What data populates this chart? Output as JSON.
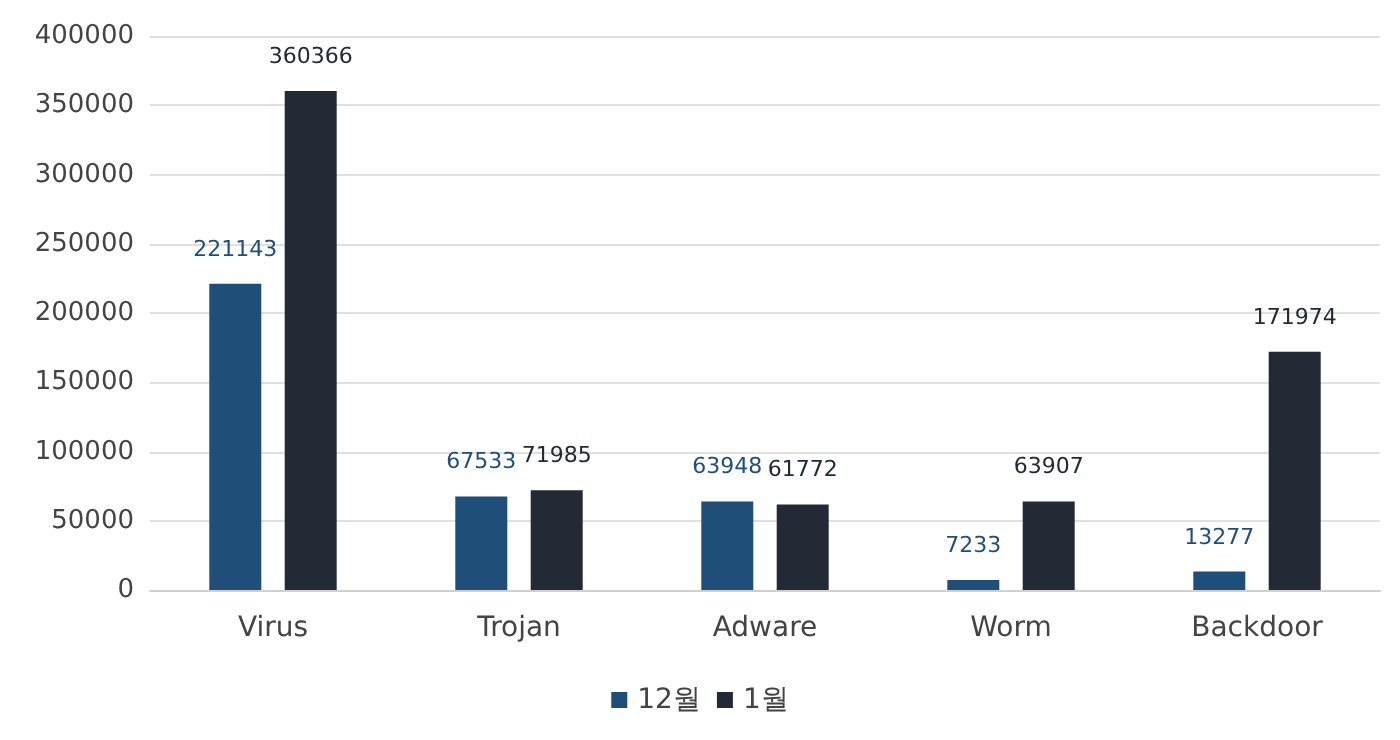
{
  "chart_data": {
    "type": "bar",
    "categories": [
      "Virus",
      "Trojan",
      "Adware",
      "Worm",
      "Backdoor"
    ],
    "series": [
      {
        "name": "12월",
        "color": "#1f4e79",
        "values": [
          221143,
          67533,
          63948,
          7233,
          13277
        ]
      },
      {
        "name": "1월",
        "color": "#232a35",
        "values": [
          360366,
          71985,
          61772,
          63907,
          171974
        ]
      }
    ],
    "ylim": [
      0,
      400000
    ],
    "yticks": [
      0,
      50000,
      100000,
      150000,
      200000,
      250000,
      300000,
      350000,
      400000
    ],
    "grid": "y",
    "legend": "bottom",
    "data_labels": true
  }
}
